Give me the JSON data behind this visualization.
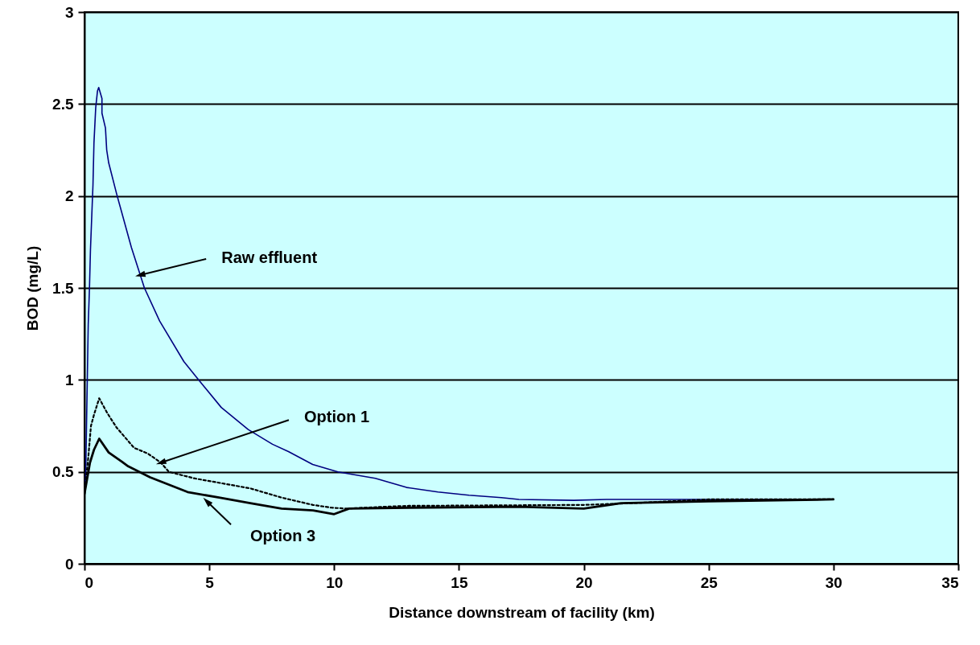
{
  "chart_data": {
    "type": "line",
    "xlabel": "Distance downstream of facility (km)",
    "ylabel": "BOD (mg/L)",
    "xlim": [
      0,
      35
    ],
    "xticks": [
      0,
      5,
      10,
      15,
      20,
      25,
      30,
      35
    ],
    "ylim": [
      0,
      3
    ],
    "yticks": [
      0,
      0.5,
      1,
      1.5,
      2,
      2.5,
      3
    ],
    "grid": "y",
    "marker": "none",
    "annotations": [
      {
        "text": "Raw effluent",
        "x": 2.23,
        "y": 1.57
      },
      {
        "text": "Option 1",
        "x": 3.06,
        "y": 0.55
      },
      {
        "text": "Option 3",
        "x": 4.9,
        "y": 0.34
      }
    ],
    "series": [
      {
        "color": "#000080",
        "line_style": "solid",
        "x": [
          0,
          0.05,
          0.1,
          0.15,
          0.2,
          0.24,
          0.34,
          0.38,
          0.45,
          0.52,
          0.57,
          0.7,
          0.7,
          0.84,
          0.89,
          0.97,
          1.29,
          1.88,
          2.4,
          3.01,
          3.98,
          4.57,
          5.48,
          6.56,
          7.53,
          8.17,
          9.14,
          10.15,
          11.65,
          12.9,
          14.16,
          15.4,
          16.7,
          17.4,
          19.6,
          20.9,
          25,
          30
        ],
        "values": [
          0.38,
          0.5,
          0.9,
          1.3,
          1.5,
          1.71,
          2.06,
          2.29,
          2.48,
          2.57,
          2.59,
          2.53,
          2.45,
          2.37,
          2.25,
          2.18,
          2.01,
          1.72,
          1.5,
          1.32,
          1.1,
          1.0,
          0.85,
          0.73,
          0.65,
          0.61,
          0.54,
          0.5,
          0.465,
          0.415,
          0.39,
          0.373,
          0.36,
          0.35,
          0.345,
          0.35,
          0.35,
          0.35
        ]
      },
      {
        "color": "#000000",
        "line_style": "dashed",
        "x": [
          0,
          0.16,
          0.26,
          0.38,
          0.59,
          0.91,
          1.29,
          1.99,
          2.53,
          3.06,
          3.38,
          4.38,
          6.64,
          7.89,
          9.15,
          9.9,
          10.5,
          12,
          13,
          20,
          22,
          25,
          30
        ],
        "values": [
          0.38,
          0.59,
          0.75,
          0.81,
          0.9,
          0.82,
          0.74,
          0.63,
          0.6,
          0.55,
          0.5,
          0.465,
          0.41,
          0.36,
          0.32,
          0.305,
          0.3,
          0.31,
          0.315,
          0.32,
          0.33,
          0.35,
          0.35
        ]
      },
      {
        "color": "#000000",
        "line_style": "solid",
        "x": [
          0,
          0.22,
          0.38,
          0.59,
          0.97,
          1.5,
          1.75,
          2.63,
          4.13,
          5.39,
          6.64,
          7.89,
          9.15,
          10,
          10.6,
          13,
          17.4,
          20,
          21.5,
          25,
          30
        ],
        "values": [
          0.38,
          0.55,
          0.62,
          0.68,
          0.605,
          0.555,
          0.53,
          0.47,
          0.39,
          0.36,
          0.33,
          0.3,
          0.29,
          0.27,
          0.3,
          0.305,
          0.31,
          0.3,
          0.33,
          0.34,
          0.35
        ]
      }
    ]
  }
}
